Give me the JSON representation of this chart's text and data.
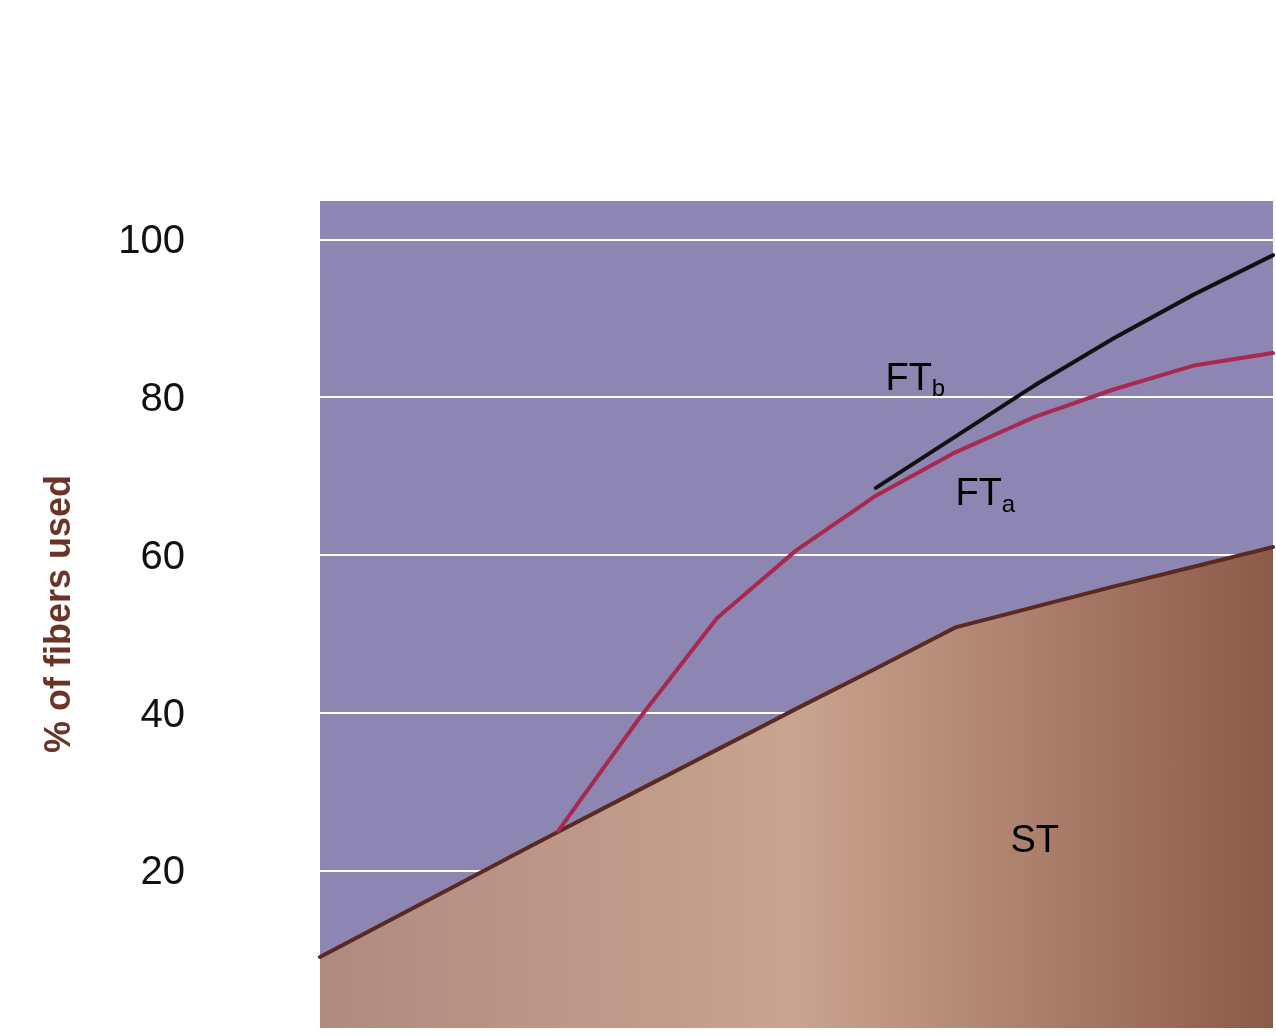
{
  "chart_data": {
    "type": "line",
    "ylabel": "% of fibers used",
    "categories": [
      null,
      null,
      null,
      null,
      null,
      null,
      null,
      null,
      null,
      null,
      null,
      null,
      null
    ],
    "series": [
      {
        "name": "ST",
        "type": "area",
        "color": "#5a2a22",
        "values": [
          9,
          14.3,
          19.6,
          24.9,
          30.1,
          35.3,
          40.5,
          45.6,
          50.8,
          53.4,
          56,
          58.5,
          61
        ]
      },
      {
        "name": "FT$_{a}$",
        "color": "#a8294f",
        "values": [
          null,
          null,
          null,
          25,
          39,
          52,
          60.6,
          67.5,
          73,
          77.5,
          81,
          84,
          85.6
        ]
      },
      {
        "name": "FT$_{b}$",
        "color": "#111111",
        "values": [
          null,
          null,
          null,
          null,
          null,
          null,
          null,
          68.5,
          75,
          81.5,
          87.5,
          93,
          98
        ]
      }
    ],
    "ylim": [
      0,
      105
    ],
    "yticks": [
      20,
      40,
      60,
      80,
      100
    ],
    "grid": "y",
    "legend": false,
    "marker": "none",
    "line_style": "solid"
  }
}
